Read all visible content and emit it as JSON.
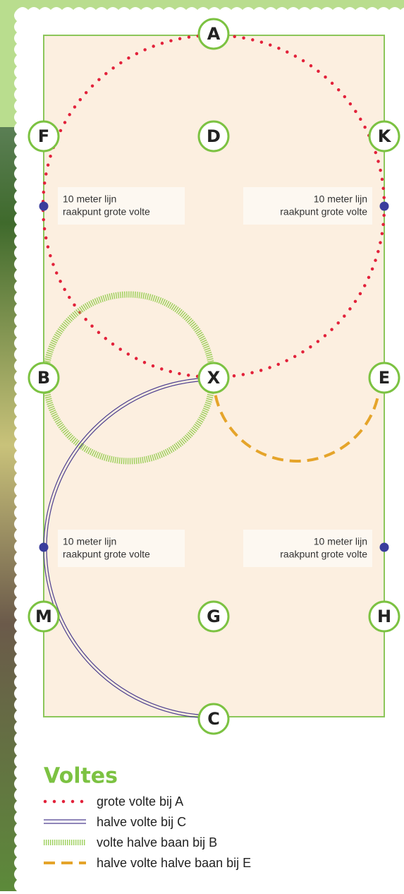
{
  "arena": {
    "letters": [
      "A",
      "F",
      "D",
      "K",
      "B",
      "X",
      "E",
      "M",
      "G",
      "H",
      "C"
    ],
    "notes": [
      {
        "line1": "10 meter lijn",
        "line2": "raakpunt grote volte"
      },
      {
        "line1": "10 meter lijn",
        "line2": "raakpunt grote volte"
      },
      {
        "line1": "10 meter lijn",
        "line2": "raakpunt grote volte"
      },
      {
        "line1": "10 meter lijn",
        "line2": "raakpunt grote volte"
      }
    ]
  },
  "legend": {
    "title": "Voltes",
    "items": [
      "grote volte bij A",
      "halve volte bij C",
      "volte halve baan bij B",
      "halve volte halve baan bij E"
    ]
  }
}
